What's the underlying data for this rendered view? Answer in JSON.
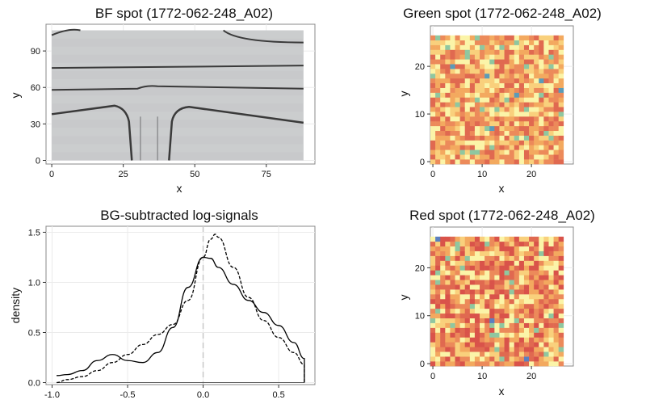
{
  "chart_data": [
    {
      "type": "image",
      "title": "BF spot (1772-062-248_A02)",
      "xlabel": "x",
      "ylabel": "y",
      "xlim": [
        -2,
        92
      ],
      "ylim": [
        -3,
        112
      ],
      "xticks": [
        0,
        25,
        50,
        75
      ],
      "yticks": [
        0,
        30,
        60,
        90
      ],
      "grid": true,
      "image_extent": {
        "x": [
          0,
          88
        ],
        "y": [
          0,
          107
        ]
      },
      "features": {
        "horizontal_channel_lines_y": [
          76,
          58,
          38
        ],
        "top_left_curve": true,
        "vertical_channel_x": [
          25,
          42
        ]
      },
      "colors": {
        "background": "#c8c9cb",
        "channel": "#3a3a3a"
      }
    },
    {
      "type": "heatmap",
      "title": "Green spot (1772-062-248_A02)",
      "xlabel": "x",
      "ylabel": "y",
      "xlim": [
        -0.5,
        28.5
      ],
      "ylim": [
        -0.5,
        28.5
      ],
      "xticks": [
        0,
        10,
        20
      ],
      "yticks": [
        0,
        10,
        20
      ],
      "grid": true,
      "grid_size": [
        27,
        27
      ],
      "palette": [
        "#fbf4a8",
        "#f9d07c",
        "#f3a95f",
        "#ec8a5a",
        "#e06950",
        "#8fc7a0",
        "#5b9bb8"
      ],
      "highlighted_cells": [
        [
          26,
          15
        ],
        [
          22,
          17
        ],
        [
          11,
          18
        ],
        [
          12,
          7
        ],
        [
          4,
          20
        ],
        [
          17,
          14
        ]
      ]
    },
    {
      "type": "line",
      "title": "BG-subtracted log-signals",
      "xlabel": "",
      "ylabel": "density",
      "xlim": [
        -1.04,
        0.74
      ],
      "ylim": [
        -0.02,
        1.56
      ],
      "xticks": [
        -1.0,
        -0.5,
        0.0,
        0.5
      ],
      "yticks": [
        0.0,
        0.5,
        1.0,
        1.5
      ],
      "grid": true,
      "vline": 0.0,
      "series": [
        {
          "style": "solid",
          "x": [
            -0.97,
            -0.9,
            -0.8,
            -0.7,
            -0.6,
            -0.5,
            -0.4,
            -0.3,
            -0.2,
            -0.1,
            0.0,
            0.05,
            0.1,
            0.2,
            0.3,
            0.4,
            0.5,
            0.6,
            0.67
          ],
          "y": [
            0.07,
            0.08,
            0.12,
            0.22,
            0.28,
            0.22,
            0.2,
            0.3,
            0.55,
            0.95,
            1.25,
            1.24,
            1.15,
            0.98,
            0.82,
            0.7,
            0.57,
            0.4,
            0.24
          ]
        },
        {
          "style": "dashed",
          "x": [
            -0.97,
            -0.9,
            -0.8,
            -0.7,
            -0.6,
            -0.5,
            -0.4,
            -0.3,
            -0.2,
            -0.1,
            0.0,
            0.05,
            0.08,
            0.1,
            0.2,
            0.3,
            0.4,
            0.5,
            0.6,
            0.67
          ],
          "y": [
            0.0,
            0.03,
            0.06,
            0.12,
            0.2,
            0.28,
            0.38,
            0.48,
            0.58,
            0.82,
            1.25,
            1.43,
            1.48,
            1.45,
            1.15,
            0.85,
            0.62,
            0.45,
            0.3,
            0.18
          ]
        }
      ],
      "colors": {
        "vline": "#c8c8c8",
        "line": "#000000"
      }
    },
    {
      "type": "heatmap",
      "title": "Red spot (1772-062-248_A02)",
      "xlabel": "x",
      "ylabel": "y",
      "xlim": [
        -0.5,
        28.5
      ],
      "ylim": [
        -0.5,
        28.5
      ],
      "xticks": [
        0,
        10,
        20
      ],
      "yticks": [
        0,
        10,
        20
      ],
      "grid": true,
      "grid_size": [
        27,
        27
      ],
      "palette": [
        "#fbf4a8",
        "#f9d07c",
        "#f3a95f",
        "#ec8a5a",
        "#e06950",
        "#d9534a",
        "#8fc7a0",
        "#5b7fbf"
      ],
      "highlighted_cells": [
        [
          12,
          9
        ],
        [
          1,
          26
        ],
        [
          19,
          1
        ]
      ]
    }
  ]
}
